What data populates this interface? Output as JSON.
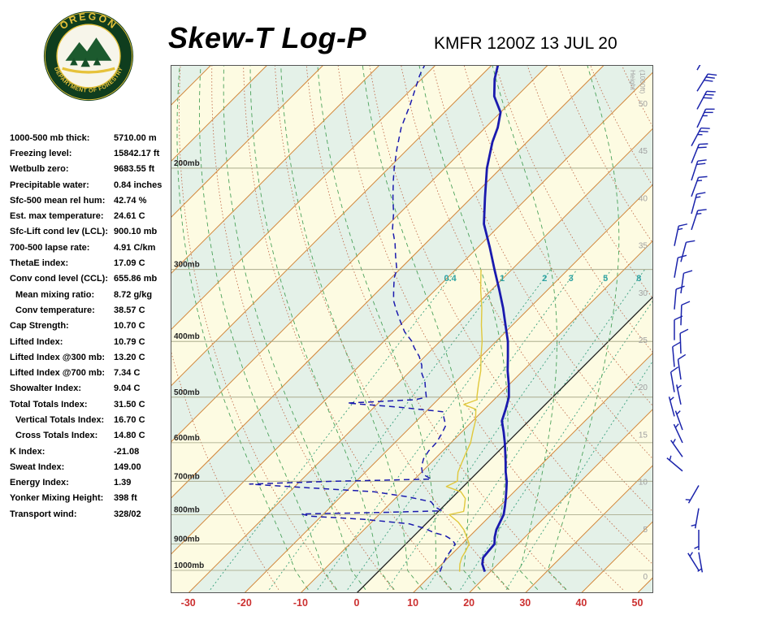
{
  "header": {
    "title": "Skew-T Log-P",
    "station": "KMFR 1200Z 13 JUL 20"
  },
  "logo": {
    "top_text": "OREGON",
    "bottom_text": "DEPARTMENT OF FORESTRY"
  },
  "indices": [
    {
      "label": "1000-500 mb thick:",
      "value": "5710.00 m",
      "indent": false
    },
    {
      "label": "Freezing level:",
      "value": "15842.17 ft",
      "indent": false
    },
    {
      "label": "Wetbulb zero:",
      "value": "9683.55 ft",
      "indent": false
    },
    {
      "label": "Precipitable water:",
      "value": "0.84 inches",
      "indent": false
    },
    {
      "label": "Sfc-500 mean rel hum:",
      "value": "42.74 %",
      "indent": false
    },
    {
      "label": "Est. max temperature:",
      "value": "24.61 C",
      "indent": false
    },
    {
      "label": "Sfc-Lift cond lev (LCL):",
      "value": "900.10 mb",
      "indent": false
    },
    {
      "label": "700-500 lapse rate:",
      "value": "4.91 C/km",
      "indent": false
    },
    {
      "label": "ThetaE index:",
      "value": "17.09 C",
      "indent": false
    },
    {
      "label": "Conv cond level (CCL):",
      "value": "655.86 mb",
      "indent": false
    },
    {
      "label": "Mean mixing ratio:",
      "value": "8.72 g/kg",
      "indent": true
    },
    {
      "label": "Conv temperature:",
      "value": "38.57 C",
      "indent": true
    },
    {
      "label": "Cap Strength:",
      "value": "10.70 C",
      "indent": false
    },
    {
      "label": "Lifted Index:",
      "value": "10.79 C",
      "indent": false
    },
    {
      "label": "Lifted Index @300 mb:",
      "value": "13.20 C",
      "indent": false
    },
    {
      "label": "Lifted Index @700 mb:",
      "value": "7.34 C",
      "indent": false
    },
    {
      "label": "Showalter Index:",
      "value": "9.04 C",
      "indent": false
    },
    {
      "label": "Total Totals Index:",
      "value": "31.50 C",
      "indent": false
    },
    {
      "label": "Vertical Totals Index:",
      "value": "16.70 C",
      "indent": true
    },
    {
      "label": "Cross Totals Index:",
      "value": "14.80 C",
      "indent": true
    },
    {
      "label": "K Index:",
      "value": "-21.08",
      "indent": false
    },
    {
      "label": "Sweat Index:",
      "value": "149.00",
      "indent": false
    },
    {
      "label": "Energy Index:",
      "value": "1.39",
      "indent": false
    },
    {
      "label": "Yonker Mixing Height:",
      "value": "398 ft",
      "indent": false
    },
    {
      "label": "Transport wind:",
      "value": "328/02",
      "indent": false
    }
  ],
  "chart_data": {
    "type": "line",
    "title": "Skew-T Log-P sounding",
    "x_axis": {
      "ticks": [
        -30,
        -20,
        -10,
        0,
        10,
        20,
        30,
        40,
        50
      ],
      "unit": "C",
      "color": "#cc3030"
    },
    "pressure_labels": [
      "200mb",
      "300mb",
      "400mb",
      "500mb",
      "600mb",
      "700mb",
      "800mb",
      "900mb",
      "1000mb"
    ],
    "height_axis": {
      "title": "Height (1000ft)",
      "ticks": [
        "50",
        "45",
        "40",
        "35",
        "30",
        "25",
        "20",
        "15",
        "10",
        "5",
        "0"
      ]
    },
    "mixing_ratio_labels": [
      "0.4",
      "1",
      "2",
      "3",
      "5",
      "8"
    ],
    "series": [
      {
        "name": "wetbulb",
        "color": "#e0c83c",
        "width": 1.4,
        "dash": "",
        "points": [
          [
            1005,
            14.5
          ],
          [
            975,
            13.2
          ],
          [
            950,
            12.4
          ],
          [
            925,
            11.9
          ],
          [
            900,
            11.3
          ],
          [
            875,
            9.6
          ],
          [
            850,
            7.8
          ],
          [
            825,
            5.5
          ],
          [
            800,
            2.5
          ],
          [
            790,
            4.5
          ],
          [
            775,
            3.8
          ],
          [
            750,
            2.5
          ],
          [
            730,
            0.5
          ],
          [
            715,
            -3.0
          ],
          [
            700,
            -2.0
          ],
          [
            675,
            -3.5
          ],
          [
            650,
            -4.5
          ],
          [
            625,
            -5.5
          ],
          [
            600,
            -6.5
          ],
          [
            575,
            -8.0
          ],
          [
            550,
            -9.5
          ],
          [
            525,
            -11.5
          ],
          [
            515,
            -14.5
          ],
          [
            505,
            -13.0
          ],
          [
            500,
            -13.5
          ],
          [
            475,
            -15.5
          ],
          [
            450,
            -17.5
          ],
          [
            425,
            -20.0
          ],
          [
            400,
            -22.5
          ],
          [
            375,
            -25.5
          ],
          [
            350,
            -28.5
          ],
          [
            325,
            -32.0
          ],
          [
            300,
            -35.5
          ]
        ]
      },
      {
        "name": "dewpoint",
        "color": "#1a1aae",
        "width": 1.5,
        "dash": "7,5",
        "points": [
          [
            1005,
            11.0
          ],
          [
            975,
            10.2
          ],
          [
            950,
            9.6
          ],
          [
            925,
            9.2
          ],
          [
            900,
            8.8
          ],
          [
            885,
            7.5
          ],
          [
            870,
            5.5
          ],
          [
            860,
            3.0
          ],
          [
            845,
            0.5
          ],
          [
            830,
            -3.0
          ],
          [
            815,
            -12.0
          ],
          [
            805,
            -22.0
          ],
          [
            798,
            -23.9
          ],
          [
            793,
            -10.0
          ],
          [
            788,
            0.5
          ],
          [
            775,
            -1.5
          ],
          [
            760,
            -3.0
          ],
          [
            745,
            -8.0
          ],
          [
            730,
            -15.0
          ],
          [
            718,
            -28.0
          ],
          [
            708,
            -38.5
          ],
          [
            700,
            -24.0
          ],
          [
            694,
            -7.0
          ],
          [
            680,
            -9.5
          ],
          [
            660,
            -11.0
          ],
          [
            640,
            -12.0
          ],
          [
            620,
            -12.5
          ],
          [
            600,
            -12.6
          ],
          [
            580,
            -13.2
          ],
          [
            560,
            -14.0
          ],
          [
            545,
            -15.5
          ],
          [
            530,
            -17.0
          ],
          [
            520,
            -26.0
          ],
          [
            512,
            -35.5
          ],
          [
            505,
            -24.0
          ],
          [
            500,
            -22.5
          ],
          [
            485,
            -24.0
          ],
          [
            470,
            -25.5
          ],
          [
            455,
            -27.5
          ],
          [
            440,
            -29.0
          ],
          [
            425,
            -31.0
          ],
          [
            410,
            -33.5
          ],
          [
            400,
            -35.0
          ],
          [
            385,
            -38.0
          ],
          [
            370,
            -40.5
          ],
          [
            355,
            -43.0
          ],
          [
            340,
            -45.5
          ],
          [
            325,
            -47.5
          ],
          [
            310,
            -49.5
          ],
          [
            300,
            -50.5
          ],
          [
            285,
            -53.0
          ],
          [
            270,
            -55.5
          ],
          [
            255,
            -58.5
          ],
          [
            240,
            -61.0
          ],
          [
            225,
            -64.0
          ],
          [
            210,
            -67.0
          ],
          [
            200,
            -69.0
          ],
          [
            185,
            -72.0
          ],
          [
            170,
            -75.0
          ],
          [
            155,
            -77.5
          ],
          [
            145,
            -79.5
          ],
          [
            138,
            -81.0
          ],
          [
            132,
            -82.0
          ]
        ]
      },
      {
        "name": "temperature",
        "color": "#1a1aae",
        "width": 2.8,
        "dash": "",
        "points": [
          [
            1005,
            19.0
          ],
          [
            975,
            17.2
          ],
          [
            950,
            16.2
          ],
          [
            925,
            16.0
          ],
          [
            900,
            15.8
          ],
          [
            875,
            14.6
          ],
          [
            850,
            13.6
          ],
          [
            825,
            12.9
          ],
          [
            800,
            12.2
          ],
          [
            775,
            11.0
          ],
          [
            750,
            9.7
          ],
          [
            725,
            8.3
          ],
          [
            700,
            6.8
          ],
          [
            675,
            5.0
          ],
          [
            650,
            3.3
          ],
          [
            625,
            1.5
          ],
          [
            600,
            -0.4
          ],
          [
            575,
            -2.5
          ],
          [
            550,
            -4.8
          ],
          [
            525,
            -6.2
          ],
          [
            500,
            -7.8
          ],
          [
            475,
            -10.1
          ],
          [
            450,
            -12.7
          ],
          [
            425,
            -15.2
          ],
          [
            400,
            -17.9
          ],
          [
            375,
            -21.2
          ],
          [
            350,
            -24.7
          ],
          [
            325,
            -28.7
          ],
          [
            300,
            -33.1
          ],
          [
            275,
            -37.8
          ],
          [
            250,
            -43.1
          ],
          [
            225,
            -47.6
          ],
          [
            200,
            -52.5
          ],
          [
            190,
            -54.3
          ],
          [
            180,
            -56.2
          ],
          [
            170,
            -57.8
          ],
          [
            160,
            -60.0
          ],
          [
            150,
            -64.0
          ],
          [
            140,
            -67.0
          ],
          [
            132,
            -69.0
          ]
        ]
      }
    ],
    "winds": [
      {
        "p": 135,
        "dir": 30,
        "spd": 25
      },
      {
        "p": 147,
        "dir": 32,
        "spd": 30
      },
      {
        "p": 158,
        "dir": 28,
        "spd": 30
      },
      {
        "p": 170,
        "dir": 25,
        "spd": 25
      },
      {
        "p": 183,
        "dir": 28,
        "spd": 25
      },
      {
        "p": 196,
        "dir": 22,
        "spd": 20
      },
      {
        "p": 210,
        "dir": 18,
        "spd": 20
      },
      {
        "p": 224,
        "dir": 20,
        "spd": 15
      },
      {
        "p": 240,
        "dir": 15,
        "spd": 15
      },
      {
        "p": 256,
        "dir": 18,
        "spd": 15
      },
      {
        "p": 273,
        "dir": 12,
        "spd": 15
      },
      {
        "p": 291,
        "dir": 15,
        "spd": 10
      },
      {
        "p": 310,
        "dir": 10,
        "spd": 10
      },
      {
        "p": 330,
        "dir": 8,
        "spd": 10
      },
      {
        "p": 352,
        "dir": 5,
        "spd": 10
      },
      {
        "p": 375,
        "dir": 2,
        "spd": 10
      },
      {
        "p": 398,
        "dir": 0,
        "spd": 10
      },
      {
        "p": 420,
        "dir": 358,
        "spd": 10
      },
      {
        "p": 443,
        "dir": 355,
        "spd": 8
      },
      {
        "p": 466,
        "dir": 352,
        "spd": 8
      },
      {
        "p": 490,
        "dir": 350,
        "spd": 8
      },
      {
        "p": 515,
        "dir": 348,
        "spd": 5
      },
      {
        "p": 540,
        "dir": 345,
        "spd": 5
      },
      {
        "p": 570,
        "dir": 340,
        "spd": 5
      },
      {
        "p": 600,
        "dir": 335,
        "spd": 5
      },
      {
        "p": 635,
        "dir": 325,
        "spd": 3
      },
      {
        "p": 672,
        "dir": 310,
        "spd": 3
      },
      {
        "p": 712,
        "dir": 210,
        "spd": 3
      },
      {
        "p": 780,
        "dir": 190,
        "spd": 3
      },
      {
        "p": 850,
        "dir": 180,
        "spd": 2
      },
      {
        "p": 930,
        "dir": 170,
        "spd": 2
      },
      {
        "p": 1000,
        "dir": 328,
        "spd": 2
      }
    ]
  }
}
